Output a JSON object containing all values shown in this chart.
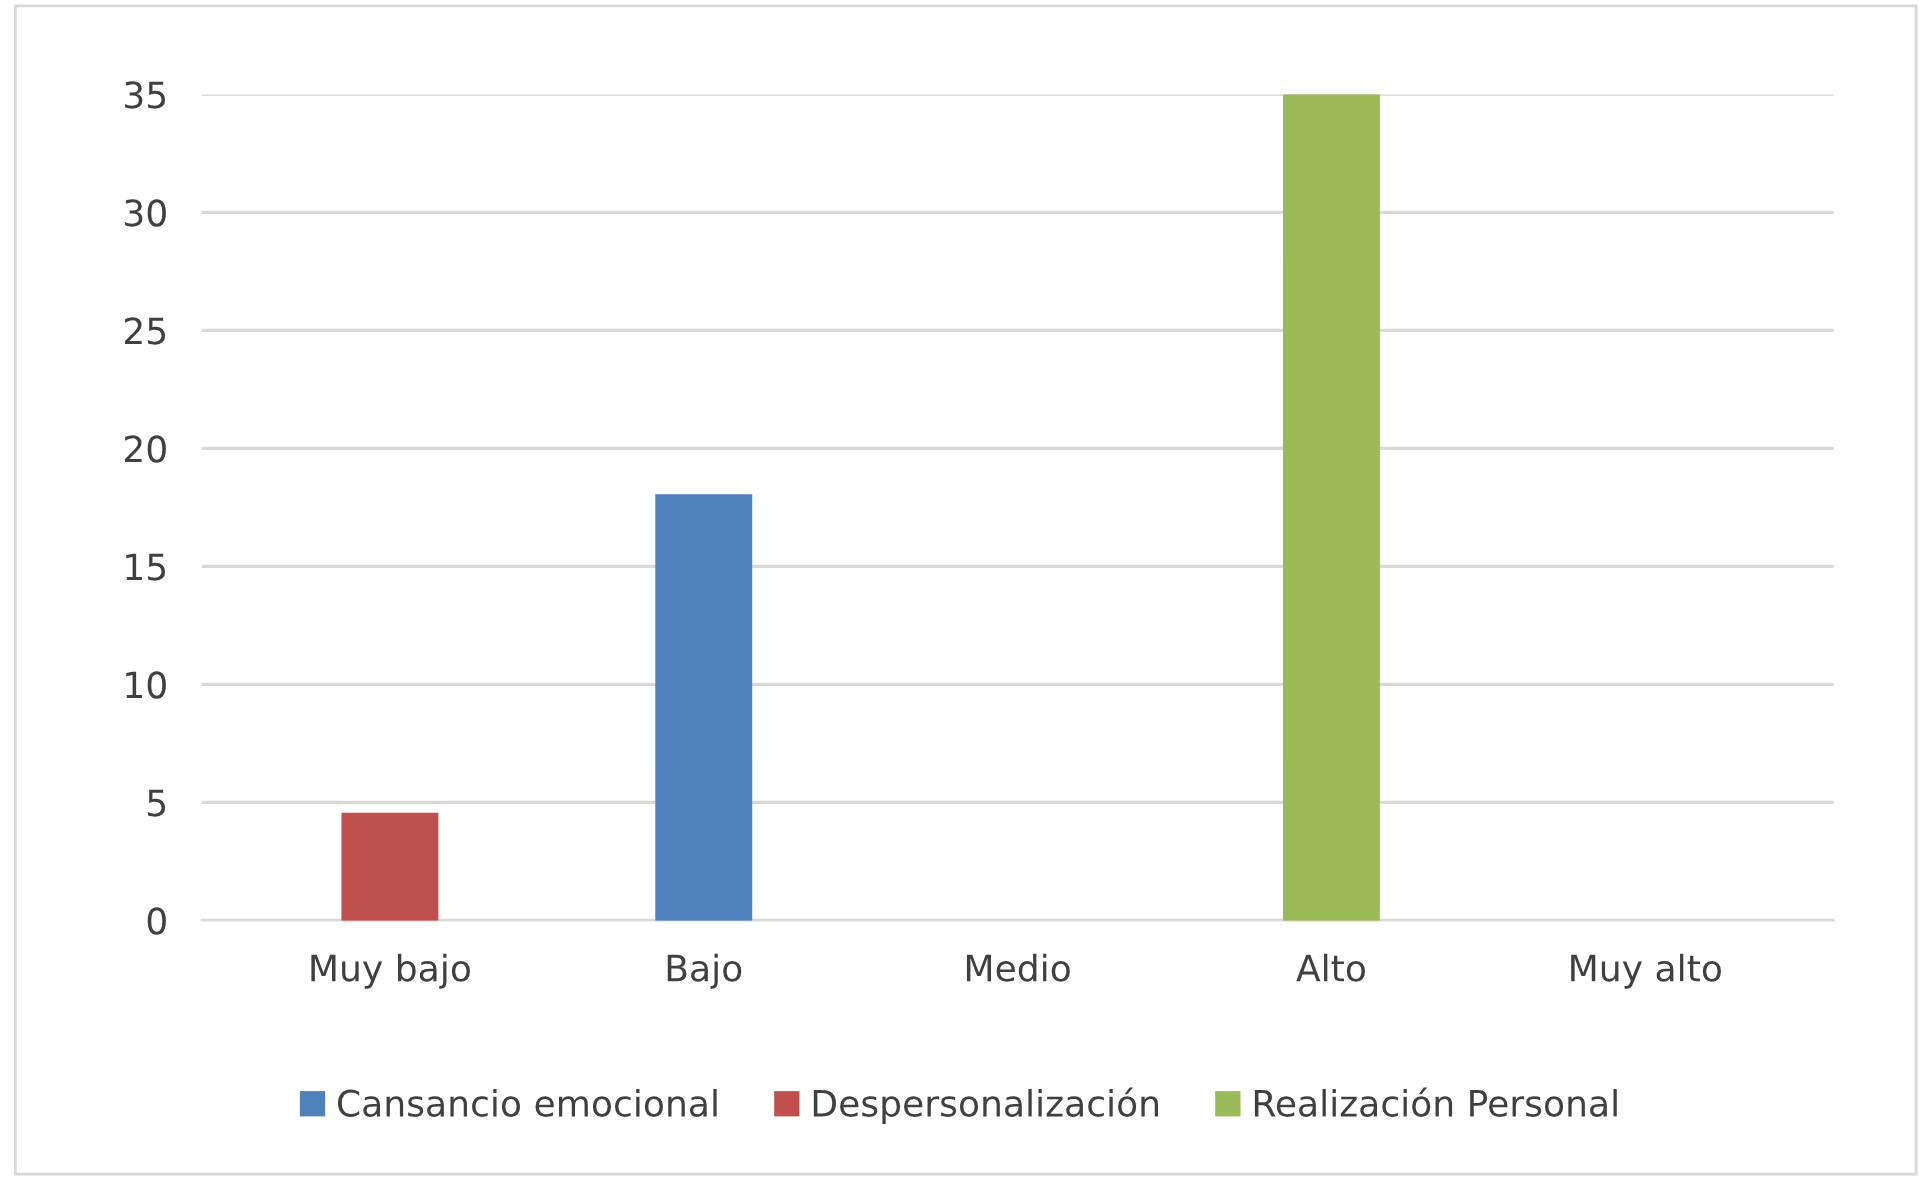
{
  "chart_data": {
    "type": "bar",
    "categories": [
      "Muy bajo",
      "Bajo",
      "Medio",
      "Alto",
      "Muy alto"
    ],
    "series": [
      {
        "name": "Cansancio emocional",
        "color": "#4f81bd",
        "values": [
          null,
          18,
          null,
          null,
          null
        ]
      },
      {
        "name": "Despersonalización",
        "color": "#c0504d",
        "values": [
          4.5,
          null,
          null,
          null,
          null
        ]
      },
      {
        "name": "Realización Personal",
        "color": "#9bbb59",
        "values": [
          null,
          null,
          null,
          35,
          null
        ]
      }
    ],
    "ylim": [
      0,
      35
    ],
    "yticks": [
      0,
      5,
      10,
      15,
      20,
      25,
      30,
      35
    ],
    "grid": "y",
    "legend": "bottom"
  }
}
